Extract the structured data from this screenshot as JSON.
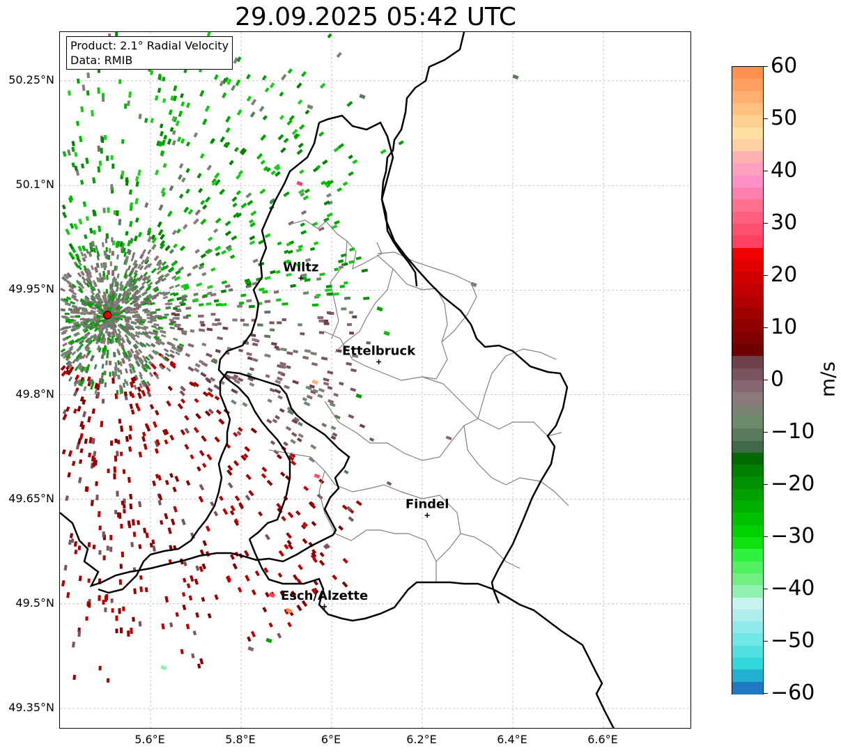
{
  "title": "29.09.2025 05:42 UTC",
  "info": {
    "product": "Product: 2.1° Radial Velocity",
    "data": "Data: RMIB"
  },
  "axes": {
    "lat_ticks": [
      "50.25°N",
      "50.1°N",
      "49.95°N",
      "49.8°N",
      "49.65°N",
      "49.5°N",
      "49.35°N"
    ],
    "lon_ticks": [
      "5.6°E",
      "5.8°E",
      "6°E",
      "6.2°E",
      "6.4°E",
      "6.6°E"
    ],
    "grid": true
  },
  "colorbar": {
    "label": "m/s",
    "ticks": [
      "60",
      "50",
      "40",
      "30",
      "20",
      "10",
      "0",
      "−10",
      "−20",
      "−30",
      "−40",
      "−50",
      "−60"
    ],
    "range": [
      -60,
      60
    ]
  },
  "cities": [
    {
      "name": "Wiltz",
      "lon": 5.932,
      "lat": 49.967
    },
    {
      "name": "Ettelbruck",
      "lon": 6.104,
      "lat": 49.847
    },
    {
      "name": "Findel",
      "lon": 6.211,
      "lat": 49.627
    },
    {
      "name": "Esch/Alzette",
      "lon": 5.984,
      "lat": 49.496
    }
  ],
  "radar_site": {
    "lon": 5.505,
    "lat": 49.914
  }
}
